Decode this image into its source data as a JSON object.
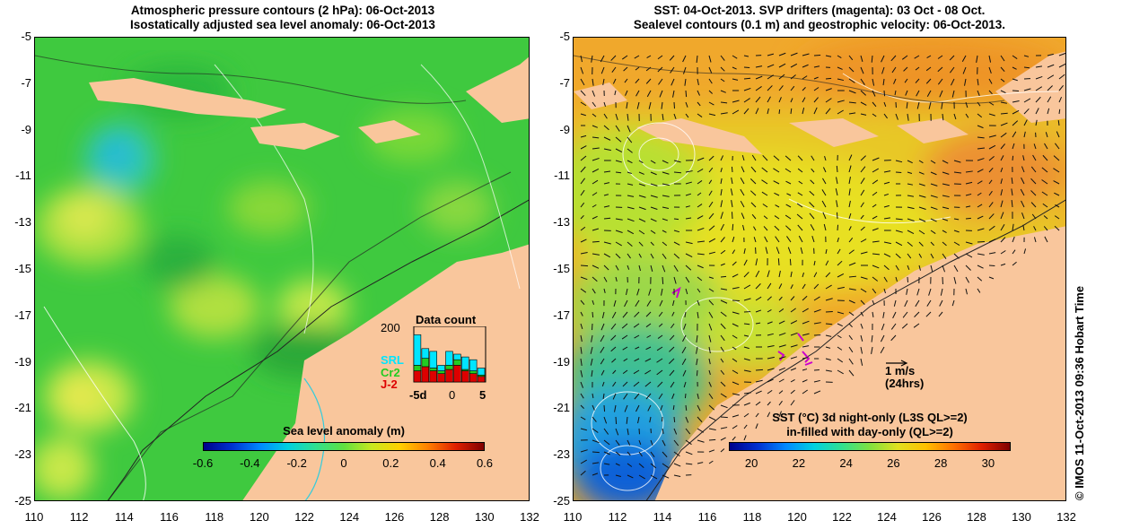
{
  "left": {
    "title_line1": "Atmospheric pressure contours (2 hPa): 06-Oct-2013",
    "title_line2": "Isostatically adjusted sea level anomaly: 06-Oct-2013",
    "colorbar_label": "Sea level anomaly (m)",
    "colorbar_ticks": [
      "-0.6",
      "-0.4",
      "-0.2",
      "0",
      "0.2",
      "0.4",
      "0.6"
    ],
    "inset": {
      "title": "Data count",
      "ymax": "200",
      "series": [
        "SRL",
        "Cr2",
        "J-2"
      ],
      "series_colors": [
        "#00e5ff",
        "#22cc22",
        "#dd0000"
      ],
      "x_ticks": [
        "-5d",
        "0",
        "5"
      ],
      "bars": [
        {
          "j2": 40,
          "cr2": 20,
          "srl": 110
        },
        {
          "j2": 55,
          "cr2": 30,
          "srl": 35
        },
        {
          "j2": 40,
          "cr2": 10,
          "srl": 60
        },
        {
          "j2": 30,
          "cr2": 10,
          "srl": 20
        },
        {
          "j2": 45,
          "cr2": 15,
          "srl": 50
        },
        {
          "j2": 60,
          "cr2": 20,
          "srl": 20
        },
        {
          "j2": 40,
          "cr2": 5,
          "srl": 45
        },
        {
          "j2": 30,
          "cr2": 10,
          "srl": 40
        },
        {
          "j2": 20,
          "cr2": 5,
          "srl": 25
        }
      ]
    }
  },
  "right": {
    "title_line1": "SST: 04-Oct-2013. SVP drifters (magenta): 03 Oct - 08 Oct.",
    "title_line2": "Sealevel contours (0.1 m) and geostrophic velocity: 06-Oct-2013.",
    "colorbar_label_line1": "SST (°C)  3d night-only (L3S QL>=2)",
    "colorbar_label_line2": "in-filled with day-only (QL>=2)",
    "colorbar_ticks": [
      "20",
      "22",
      "24",
      "26",
      "28",
      "30"
    ],
    "scale_label": "1 m/s",
    "scale_sub": "(24hrs)"
  },
  "axes": {
    "y_ticks": [
      "-5",
      "-7",
      "-9",
      "-11",
      "-13",
      "-15",
      "-17",
      "-19",
      "-21",
      "-23",
      "-25"
    ],
    "x_ticks": [
      "110",
      "112",
      "114",
      "116",
      "118",
      "120",
      "122",
      "124",
      "126",
      "128",
      "130",
      "132"
    ]
  },
  "credit": "© IMOS 11-Oct-2013 09:36 Hobart Time",
  "colors": {
    "land": "#f9c69c",
    "sla_green": "#33cc33",
    "sst_orange": "#f0a030",
    "sst_yellow": "#e8e020"
  }
}
